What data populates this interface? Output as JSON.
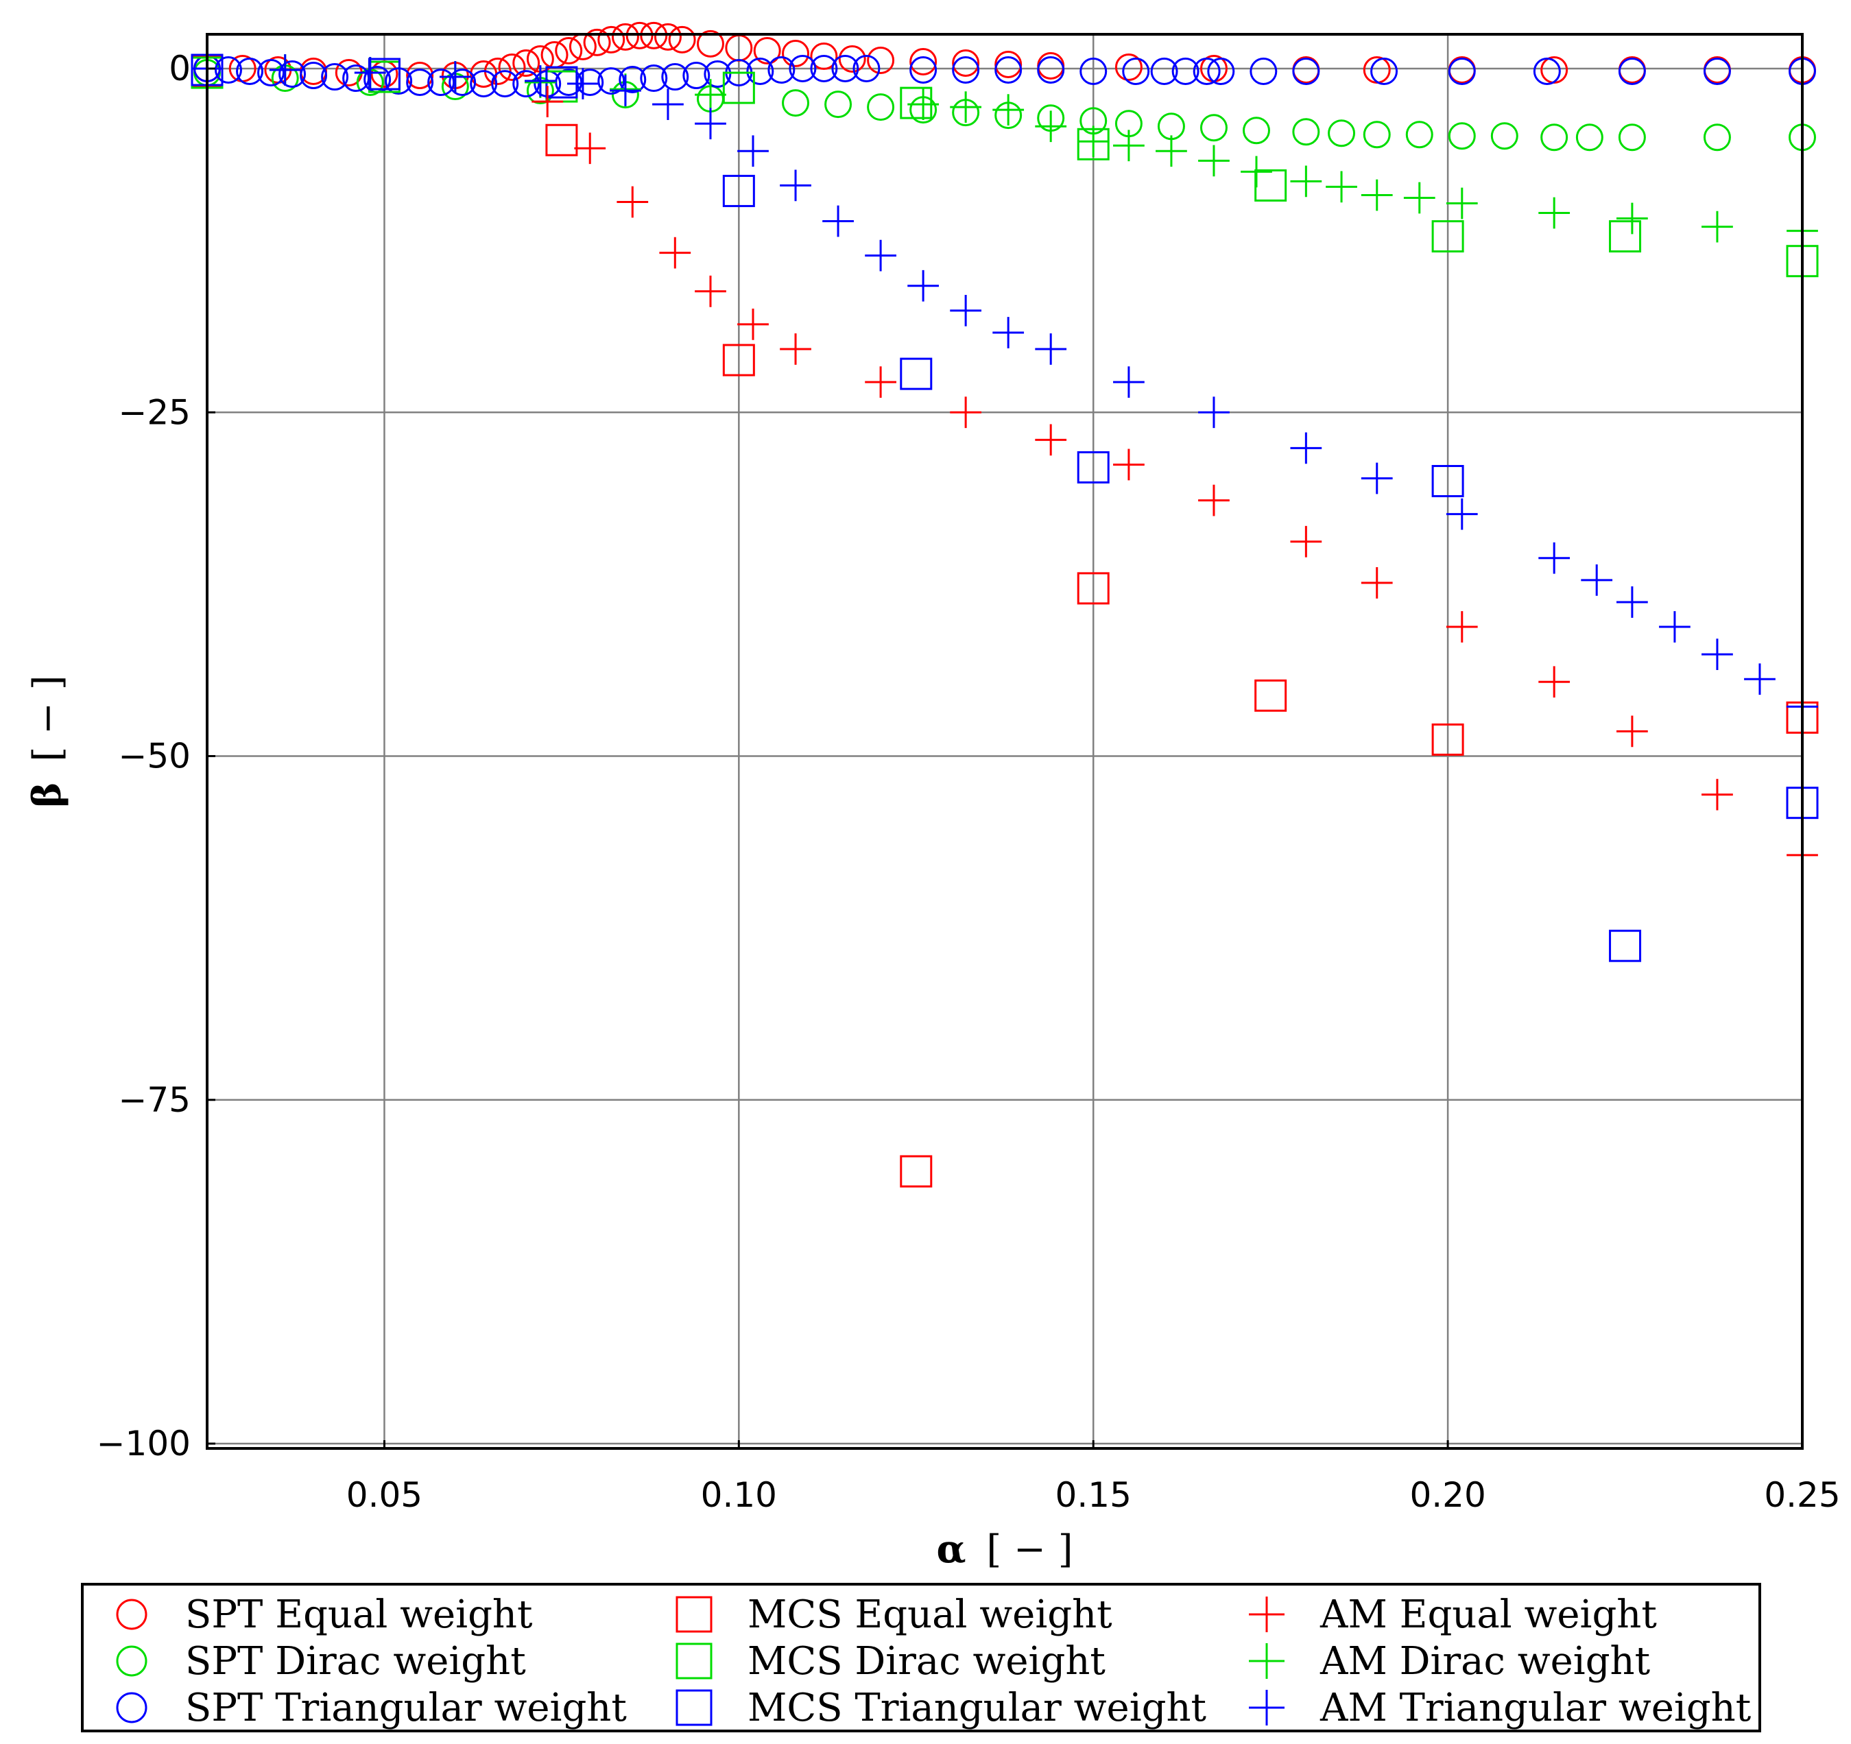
{
  "chart_data": {
    "type": "scatter",
    "xlabel": {
      "symbol": "α",
      "unit": "[ − ]"
    },
    "ylabel": {
      "symbol": "β",
      "unit": "[ − ]"
    },
    "xlim": [
      0.025,
      0.25
    ],
    "ylim": [
      -100,
      4
    ],
    "xticks": [
      "0.05",
      "0.10",
      "0.15",
      "0.20",
      "0.25"
    ],
    "xtick_values": [
      0.05,
      0.1,
      0.15,
      0.2,
      0.25
    ],
    "yticks": [
      "0",
      "−25",
      "−50",
      "−75",
      "−100"
    ],
    "ytick_values": [
      0,
      -25,
      -50,
      -75,
      -100
    ],
    "grid": true,
    "legend_position": "bottom",
    "series": [
      {
        "name": "SPT Equal weight",
        "marker": "circle",
        "color": "#ff0000",
        "points": [
          [
            0.025,
            0
          ],
          [
            0.03,
            0
          ],
          [
            0.035,
            -0.1
          ],
          [
            0.04,
            -0.2
          ],
          [
            0.045,
            -0.3
          ],
          [
            0.05,
            -0.4
          ],
          [
            0.055,
            -0.5
          ],
          [
            0.06,
            -0.5
          ],
          [
            0.064,
            -0.4
          ],
          [
            0.066,
            -0.2
          ],
          [
            0.068,
            0.1
          ],
          [
            0.07,
            0.4
          ],
          [
            0.072,
            0.7
          ],
          [
            0.074,
            1.0
          ],
          [
            0.076,
            1.3
          ],
          [
            0.078,
            1.6
          ],
          [
            0.08,
            1.9
          ],
          [
            0.082,
            2.1
          ],
          [
            0.084,
            2.3
          ],
          [
            0.086,
            2.4
          ],
          [
            0.088,
            2.4
          ],
          [
            0.09,
            2.3
          ],
          [
            0.092,
            2.1
          ],
          [
            0.096,
            1.8
          ],
          [
            0.1,
            1.5
          ],
          [
            0.104,
            1.3
          ],
          [
            0.108,
            1.1
          ],
          [
            0.112,
            0.9
          ],
          [
            0.116,
            0.7
          ],
          [
            0.12,
            0.6
          ],
          [
            0.126,
            0.5
          ],
          [
            0.132,
            0.4
          ],
          [
            0.138,
            0.3
          ],
          [
            0.144,
            0.2
          ],
          [
            0.155,
            0.1
          ],
          [
            0.167,
            0
          ],
          [
            0.18,
            -0.1
          ],
          [
            0.19,
            -0.1
          ],
          [
            0.202,
            -0.1
          ],
          [
            0.215,
            -0.1
          ],
          [
            0.226,
            -0.1
          ],
          [
            0.238,
            -0.1
          ],
          [
            0.25,
            -0.1
          ]
        ]
      },
      {
        "name": "SPT Dirac weight",
        "marker": "circle",
        "color": "#00dd00",
        "points": [
          [
            0.025,
            -0.3
          ],
          [
            0.036,
            -0.7
          ],
          [
            0.048,
            -1.0
          ],
          [
            0.06,
            -1.3
          ],
          [
            0.072,
            -1.6
          ],
          [
            0.084,
            -1.9
          ],
          [
            0.096,
            -2.2
          ],
          [
            0.108,
            -2.5
          ],
          [
            0.114,
            -2.6
          ],
          [
            0.12,
            -2.8
          ],
          [
            0.126,
            -3.0
          ],
          [
            0.132,
            -3.2
          ],
          [
            0.138,
            -3.4
          ],
          [
            0.144,
            -3.6
          ],
          [
            0.15,
            -3.8
          ],
          [
            0.155,
            -4.0
          ],
          [
            0.161,
            -4.2
          ],
          [
            0.167,
            -4.3
          ],
          [
            0.173,
            -4.5
          ],
          [
            0.18,
            -4.6
          ],
          [
            0.185,
            -4.7
          ],
          [
            0.19,
            -4.8
          ],
          [
            0.196,
            -4.8
          ],
          [
            0.202,
            -4.9
          ],
          [
            0.208,
            -4.9
          ],
          [
            0.215,
            -5.0
          ],
          [
            0.22,
            -5.0
          ],
          [
            0.226,
            -5.0
          ],
          [
            0.238,
            -5.0
          ],
          [
            0.25,
            -5.0
          ]
        ]
      },
      {
        "name": "SPT Triangular weight",
        "marker": "circle",
        "color": "#0000ff",
        "points": [
          [
            0.025,
            0
          ],
          [
            0.028,
            -0.1
          ],
          [
            0.031,
            -0.2
          ],
          [
            0.034,
            -0.3
          ],
          [
            0.037,
            -0.4
          ],
          [
            0.04,
            -0.5
          ],
          [
            0.043,
            -0.6
          ],
          [
            0.046,
            -0.7
          ],
          [
            0.049,
            -0.8
          ],
          [
            0.052,
            -0.9
          ],
          [
            0.055,
            -1.0
          ],
          [
            0.058,
            -1.0
          ],
          [
            0.061,
            -1.0
          ],
          [
            0.064,
            -1.1
          ],
          [
            0.067,
            -1.1
          ],
          [
            0.07,
            -1.1
          ],
          [
            0.073,
            -1.1
          ],
          [
            0.076,
            -1.0
          ],
          [
            0.079,
            -1.0
          ],
          [
            0.082,
            -0.9
          ],
          [
            0.085,
            -0.8
          ],
          [
            0.088,
            -0.7
          ],
          [
            0.091,
            -0.6
          ],
          [
            0.094,
            -0.5
          ],
          [
            0.097,
            -0.4
          ],
          [
            0.1,
            -0.3
          ],
          [
            0.103,
            -0.2
          ],
          [
            0.106,
            -0.1
          ],
          [
            0.109,
            0
          ],
          [
            0.112,
            0
          ],
          [
            0.115,
            0
          ],
          [
            0.118,
            0
          ],
          [
            0.126,
            -0.1
          ],
          [
            0.132,
            -0.1
          ],
          [
            0.138,
            -0.1
          ],
          [
            0.144,
            -0.1
          ],
          [
            0.15,
            -0.2
          ],
          [
            0.156,
            -0.2
          ],
          [
            0.16,
            -0.2
          ],
          [
            0.163,
            -0.2
          ],
          [
            0.166,
            -0.2
          ],
          [
            0.168,
            -0.2
          ],
          [
            0.174,
            -0.2
          ],
          [
            0.18,
            -0.2
          ],
          [
            0.191,
            -0.2
          ],
          [
            0.202,
            -0.2
          ],
          [
            0.214,
            -0.2
          ],
          [
            0.226,
            -0.2
          ],
          [
            0.238,
            -0.2
          ],
          [
            0.25,
            -0.2
          ]
        ]
      },
      {
        "name": "MCS Equal weight",
        "marker": "square",
        "color": "#ff0000",
        "points": [
          [
            0.025,
            -0.2
          ],
          [
            0.05,
            -0.4
          ],
          [
            0.075,
            -5.2
          ],
          [
            0.1,
            -21.2
          ],
          [
            0.125,
            -80.2
          ],
          [
            0.15,
            -37.8
          ],
          [
            0.175,
            -45.6
          ],
          [
            0.2,
            -48.8
          ],
          [
            0.25,
            -47.2
          ]
        ]
      },
      {
        "name": "MCS Dirac weight",
        "marker": "square",
        "color": "#00dd00",
        "points": [
          [
            0.025,
            -0.3
          ],
          [
            0.05,
            -0.6
          ],
          [
            0.075,
            -1.3
          ],
          [
            0.1,
            -1.4
          ],
          [
            0.125,
            -2.5
          ],
          [
            0.15,
            -5.5
          ],
          [
            0.175,
            -8.5
          ],
          [
            0.2,
            -12.2
          ],
          [
            0.225,
            -12.2
          ],
          [
            0.25,
            -14.0
          ]
        ]
      },
      {
        "name": "MCS Triangular weight",
        "marker": "square",
        "color": "#0000ff",
        "points": [
          [
            0.025,
            -0.1
          ],
          [
            0.05,
            -0.4
          ],
          [
            0.075,
            -1.0
          ],
          [
            0.1,
            -8.9
          ],
          [
            0.125,
            -22.2
          ],
          [
            0.15,
            -29.0
          ],
          [
            0.2,
            -30.0
          ],
          [
            0.225,
            -63.8
          ],
          [
            0.25,
            -53.4
          ]
        ]
      },
      {
        "name": "AM Equal weight",
        "marker": "plus",
        "color": "#ff0000",
        "points": [
          [
            0.073,
            -2.4
          ],
          [
            0.079,
            -5.8
          ],
          [
            0.085,
            -9.7
          ],
          [
            0.091,
            -13.4
          ],
          [
            0.096,
            -16.2
          ],
          [
            0.102,
            -18.6
          ],
          [
            0.108,
            -20.4
          ],
          [
            0.12,
            -22.8
          ],
          [
            0.132,
            -25.0
          ],
          [
            0.144,
            -27.0
          ],
          [
            0.155,
            -28.8
          ],
          [
            0.167,
            -31.4
          ],
          [
            0.18,
            -34.4
          ],
          [
            0.19,
            -37.4
          ],
          [
            0.202,
            -40.6
          ],
          [
            0.215,
            -44.6
          ],
          [
            0.226,
            -48.2
          ],
          [
            0.238,
            -52.8
          ],
          [
            0.25,
            -57.2
          ]
        ]
      },
      {
        "name": "AM Dirac weight",
        "marker": "plus",
        "color": "#00dd00",
        "points": [
          [
            0.025,
            0
          ],
          [
            0.036,
            -0.1
          ],
          [
            0.048,
            -0.3
          ],
          [
            0.06,
            -0.6
          ],
          [
            0.072,
            -1.0
          ],
          [
            0.084,
            -1.5
          ],
          [
            0.096,
            -1.9
          ],
          [
            0.126,
            -2.6
          ],
          [
            0.132,
            -2.8
          ],
          [
            0.138,
            -3.0
          ],
          [
            0.144,
            -4.2
          ],
          [
            0.15,
            -5.3
          ],
          [
            0.155,
            -5.6
          ],
          [
            0.161,
            -6.0
          ],
          [
            0.167,
            -6.7
          ],
          [
            0.173,
            -7.5
          ],
          [
            0.18,
            -8.2
          ],
          [
            0.185,
            -8.6
          ],
          [
            0.19,
            -9.2
          ],
          [
            0.196,
            -9.4
          ],
          [
            0.202,
            -9.8
          ],
          [
            0.215,
            -10.5
          ],
          [
            0.226,
            -10.9
          ],
          [
            0.238,
            -11.5
          ],
          [
            0.25,
            -11.8
          ]
        ]
      },
      {
        "name": "AM Triangular weight",
        "marker": "plus",
        "color": "#0000ff",
        "points": [
          [
            0.025,
            0
          ],
          [
            0.036,
            -0.1
          ],
          [
            0.048,
            -0.3
          ],
          [
            0.06,
            -0.6
          ],
          [
            0.072,
            -0.9
          ],
          [
            0.078,
            -1.1
          ],
          [
            0.084,
            -1.6
          ],
          [
            0.09,
            -2.6
          ],
          [
            0.096,
            -4.0
          ],
          [
            0.102,
            -6.0
          ],
          [
            0.108,
            -8.5
          ],
          [
            0.114,
            -11.1
          ],
          [
            0.12,
            -13.6
          ],
          [
            0.126,
            -15.8
          ],
          [
            0.132,
            -17.6
          ],
          [
            0.138,
            -19.2
          ],
          [
            0.144,
            -20.4
          ],
          [
            0.155,
            -22.8
          ],
          [
            0.167,
            -25.0
          ],
          [
            0.18,
            -27.6
          ],
          [
            0.19,
            -29.8
          ],
          [
            0.202,
            -32.4
          ],
          [
            0.215,
            -35.6
          ],
          [
            0.221,
            -37.2
          ],
          [
            0.226,
            -38.8
          ],
          [
            0.232,
            -40.6
          ],
          [
            0.238,
            -42.6
          ],
          [
            0.244,
            -44.4
          ],
          [
            0.25,
            -46.4
          ]
        ]
      }
    ]
  }
}
